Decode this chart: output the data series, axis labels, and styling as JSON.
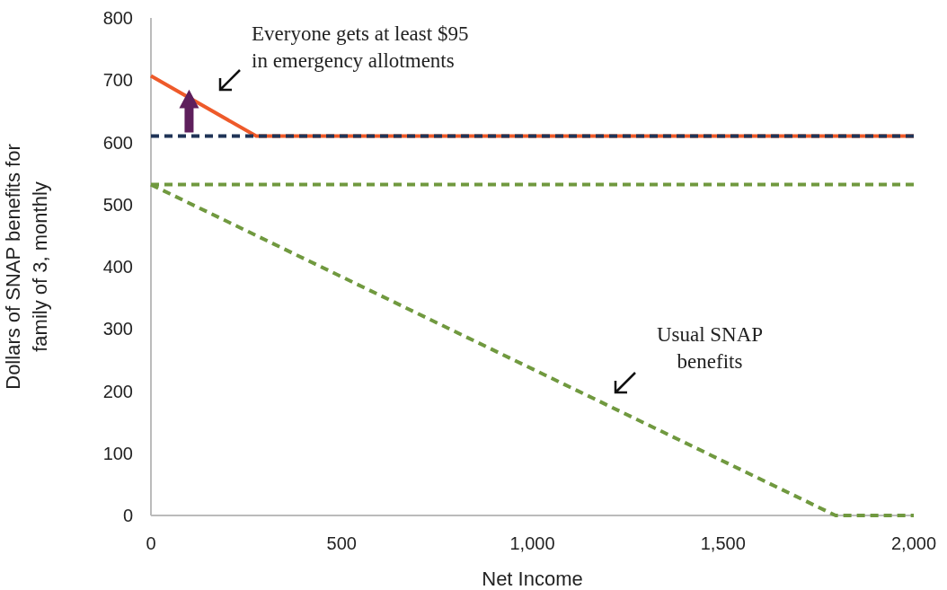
{
  "chart_data": {
    "type": "line",
    "xlabel": "Net Income",
    "ylabel": "Dollars of SNAP benefits for\nfamily of 3, monthly",
    "xlim": [
      0,
      2000
    ],
    "xticks": [
      0,
      {
        "value": 500,
        "label": "500"
      },
      {
        "value": 1000,
        "label": "1,000"
      },
      {
        "value": 1500,
        "label": "1,500"
      },
      {
        "value": 2000,
        "label": "2,000"
      }
    ],
    "ylim": [
      0,
      800
    ],
    "yticks": [
      0,
      100,
      200,
      300,
      400,
      500,
      600,
      700,
      800
    ],
    "grid": false,
    "series": [
      {
        "color": "#ee5a2a",
        "line_style": "solid",
        "x": [
          0,
          276,
          2000
        ],
        "values": [
          707,
          610,
          610
        ]
      },
      {
        "color": "#1f3457",
        "line_style": "dashed",
        "x": [
          0,
          2000
        ],
        "values": [
          610,
          610
        ]
      },
      {
        "color": "#70993f",
        "line_style": "dashed",
        "x": [
          0,
          2000
        ],
        "values": [
          532,
          532
        ]
      },
      {
        "color": "#70993f",
        "line_style": "dashed",
        "x": [
          0,
          1795,
          2000
        ],
        "values": [
          532,
          0,
          0
        ]
      }
    ],
    "annotations": [
      "Everyone gets at least $95\nin emergency allotments",
      "Usual SNAP\nbenefits"
    ]
  }
}
